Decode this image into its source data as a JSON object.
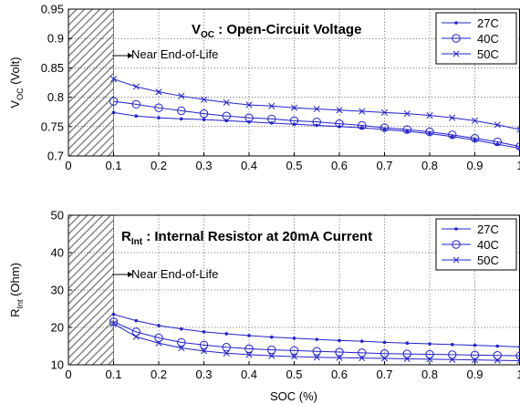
{
  "colors": {
    "series": "#2222cc",
    "axis": "#000000",
    "grid": "#000000",
    "hatch": "#777777"
  },
  "chart_data": [
    {
      "type": "line",
      "title_main": "V",
      "title_sub": "OC",
      "title_rest": " : Open-Circuit Voltage",
      "xlabel": "",
      "ylabel_main": "V",
      "ylabel_sub": "OC",
      "ylabel_rest": " (Volt)",
      "xlim": [
        0,
        1
      ],
      "ylim": [
        0.7,
        0.95
      ],
      "xticks": [
        "0",
        "0.1",
        "0.2",
        "0.3",
        "0.4",
        "0.5",
        "0.6",
        "0.7",
        "0.8",
        "0.9",
        "1"
      ],
      "yticks": [
        "0.7",
        "0.75",
        "0.8",
        "0.85",
        "0.9",
        "0.95"
      ],
      "grid": true,
      "legend_position": "top-right",
      "annotation": "Near End-of-Life",
      "shaded_region": [
        0,
        0.1
      ],
      "x": [
        0.1,
        0.15,
        0.2,
        0.25,
        0.3,
        0.35,
        0.4,
        0.45,
        0.5,
        0.55,
        0.6,
        0.65,
        0.7,
        0.75,
        0.8,
        0.85,
        0.9,
        0.95,
        1.0
      ],
      "series": [
        {
          "name": "27C",
          "marker": "dot",
          "values": [
            0.774,
            0.768,
            0.765,
            0.763,
            0.762,
            0.76,
            0.758,
            0.756,
            0.754,
            0.752,
            0.75,
            0.748,
            0.745,
            0.742,
            0.738,
            0.733,
            0.727,
            0.72,
            0.713
          ]
        },
        {
          "name": "40C",
          "marker": "circle",
          "values": [
            0.793,
            0.788,
            0.782,
            0.777,
            0.772,
            0.768,
            0.765,
            0.763,
            0.76,
            0.758,
            0.755,
            0.752,
            0.748,
            0.745,
            0.741,
            0.736,
            0.73,
            0.724,
            0.716
          ]
        },
        {
          "name": "50C",
          "marker": "x",
          "values": [
            0.831,
            0.818,
            0.809,
            0.802,
            0.796,
            0.791,
            0.787,
            0.785,
            0.782,
            0.78,
            0.778,
            0.776,
            0.774,
            0.772,
            0.769,
            0.765,
            0.76,
            0.753,
            0.745
          ]
        }
      ]
    },
    {
      "type": "line",
      "title_main": "R",
      "title_sub": "Int",
      "title_rest": " : Internal Resistor at  20mA Current",
      "xlabel": "SOC (%)",
      "ylabel_main": "R",
      "ylabel_sub": "Int",
      "ylabel_rest": " (Ohm)",
      "xlim": [
        0,
        1
      ],
      "ylim": [
        10,
        50
      ],
      "xticks": [
        "0",
        "0.1",
        "0.2",
        "0.3",
        "0.4",
        "0.5",
        "0.6",
        "0.7",
        "0.8",
        "0.9",
        "1"
      ],
      "yticks": [
        "10",
        "20",
        "30",
        "40",
        "50"
      ],
      "grid": true,
      "legend_position": "top-right",
      "annotation": "Near End-of-Life",
      "shaded_region": [
        0,
        0.1
      ],
      "x": [
        0.1,
        0.15,
        0.2,
        0.25,
        0.3,
        0.35,
        0.4,
        0.45,
        0.5,
        0.55,
        0.6,
        0.65,
        0.7,
        0.75,
        0.8,
        0.85,
        0.9,
        0.95,
        1.0
      ],
      "series": [
        {
          "name": "27C",
          "marker": "dot",
          "values": [
            23.5,
            21.8,
            20.5,
            19.6,
            18.8,
            18.3,
            17.8,
            17.4,
            17.1,
            16.8,
            16.5,
            16.3,
            16.0,
            15.8,
            15.6,
            15.4,
            15.2,
            15.0,
            14.8
          ]
        },
        {
          "name": "40C",
          "marker": "circle",
          "values": [
            21.5,
            18.8,
            17.2,
            16.0,
            15.3,
            14.7,
            14.3,
            14.0,
            13.8,
            13.6,
            13.4,
            13.2,
            13.0,
            12.9,
            12.8,
            12.7,
            12.6,
            12.5,
            12.4
          ]
        },
        {
          "name": "50C",
          "marker": "x",
          "values": [
            21.0,
            17.5,
            15.8,
            14.5,
            13.7,
            13.1,
            12.7,
            12.4,
            12.2,
            12.0,
            11.9,
            11.8,
            11.7,
            11.6,
            11.5,
            11.4,
            11.3,
            11.2,
            11.1
          ]
        }
      ]
    }
  ]
}
